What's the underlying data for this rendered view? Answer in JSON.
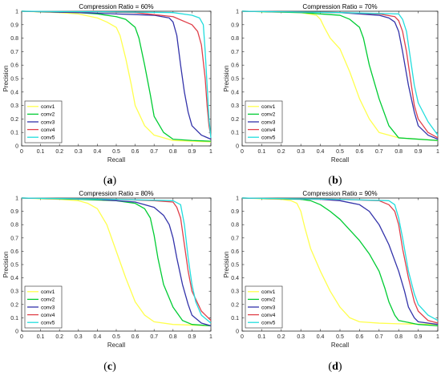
{
  "chart_data": [
    {
      "type": "line",
      "title": "Compression Ratio = 60%",
      "xlabel": "Recall",
      "ylabel": "Precision",
      "xlim": [
        0,
        1
      ],
      "ylim": [
        0,
        1
      ],
      "xticks": [
        "0",
        "0.1",
        "0.2",
        "0.3",
        "0.4",
        "0.5",
        "0.6",
        "0.7",
        "0.8",
        "0.9",
        "1"
      ],
      "yticks": [
        "0",
        "0.1",
        "0.2",
        "0.3",
        "0.4",
        "0.5",
        "0.6",
        "0.7",
        "0.8",
        "0.9",
        "1"
      ],
      "grid": false,
      "legend_position": "bottom-left",
      "panel_label": "a",
      "series": [
        {
          "name": "conv1",
          "color": "#ffff4d",
          "x": [
            0,
            0.2,
            0.3,
            0.4,
            0.45,
            0.5,
            0.52,
            0.55,
            0.58,
            0.6,
            0.65,
            0.7,
            0.8,
            0.9,
            1.0
          ],
          "y": [
            1.0,
            0.99,
            0.98,
            0.95,
            0.92,
            0.88,
            0.82,
            0.65,
            0.45,
            0.3,
            0.15,
            0.08,
            0.04,
            0.035,
            0.03
          ]
        },
        {
          "name": "conv2",
          "color": "#00cc33",
          "x": [
            0,
            0.3,
            0.4,
            0.5,
            0.55,
            0.6,
            0.62,
            0.65,
            0.68,
            0.7,
            0.75,
            0.8,
            0.9,
            1.0
          ],
          "y": [
            1.0,
            0.99,
            0.98,
            0.96,
            0.94,
            0.88,
            0.8,
            0.6,
            0.38,
            0.22,
            0.1,
            0.05,
            0.04,
            0.035
          ]
        },
        {
          "name": "conv3",
          "color": "#3333aa",
          "x": [
            0,
            0.3,
            0.5,
            0.7,
            0.78,
            0.8,
            0.82,
            0.84,
            0.86,
            0.88,
            0.9,
            0.95,
            1.0
          ],
          "y": [
            1.0,
            0.99,
            0.98,
            0.97,
            0.95,
            0.92,
            0.82,
            0.6,
            0.4,
            0.25,
            0.15,
            0.08,
            0.05
          ]
        },
        {
          "name": "conv4",
          "color": "#e0404a",
          "x": [
            0,
            0.4,
            0.6,
            0.8,
            0.9,
            0.93,
            0.95,
            0.97,
            0.98,
            0.99,
            1.0
          ],
          "y": [
            1.0,
            0.995,
            0.99,
            0.96,
            0.9,
            0.85,
            0.75,
            0.5,
            0.3,
            0.15,
            0.07
          ]
        },
        {
          "name": "conv5",
          "color": "#22dddd",
          "x": [
            0,
            0.5,
            0.8,
            0.9,
            0.94,
            0.96,
            0.97,
            0.98,
            0.99,
            1.0
          ],
          "y": [
            1.0,
            0.995,
            0.99,
            0.97,
            0.95,
            0.9,
            0.7,
            0.45,
            0.2,
            0.06
          ]
        }
      ]
    },
    {
      "type": "line",
      "title": "Compression Ratio = 70%",
      "xlabel": "Recall",
      "ylabel": "Precision",
      "xlim": [
        0,
        1
      ],
      "ylim": [
        0,
        1
      ],
      "xticks": [
        "0",
        "0.1",
        "0.2",
        "0.3",
        "0.4",
        "0.5",
        "0.6",
        "0.7",
        "0.8",
        "0.9",
        "1"
      ],
      "yticks": [
        "0",
        "0.1",
        "0.2",
        "0.3",
        "0.4",
        "0.5",
        "0.6",
        "0.7",
        "0.8",
        "0.9",
        "1"
      ],
      "grid": false,
      "legend_position": "bottom-left",
      "panel_label": "b",
      "series": [
        {
          "name": "conv1",
          "color": "#ffff4d",
          "x": [
            0,
            0.3,
            0.38,
            0.4,
            0.42,
            0.45,
            0.5,
            0.55,
            0.6,
            0.65,
            0.7,
            0.8,
            1.0
          ],
          "y": [
            1.0,
            0.99,
            0.97,
            0.94,
            0.88,
            0.8,
            0.72,
            0.55,
            0.35,
            0.2,
            0.1,
            0.06,
            0.04
          ]
        },
        {
          "name": "conv2",
          "color": "#00cc33",
          "x": [
            0,
            0.3,
            0.5,
            0.55,
            0.6,
            0.62,
            0.65,
            0.7,
            0.75,
            0.8,
            1.0
          ],
          "y": [
            1.0,
            0.99,
            0.97,
            0.94,
            0.88,
            0.8,
            0.6,
            0.35,
            0.15,
            0.06,
            0.04
          ]
        },
        {
          "name": "conv3",
          "color": "#3333aa",
          "x": [
            0,
            0.5,
            0.7,
            0.75,
            0.78,
            0.8,
            0.82,
            0.85,
            0.88,
            0.9,
            0.95,
            1.0
          ],
          "y": [
            1.0,
            0.99,
            0.97,
            0.95,
            0.92,
            0.85,
            0.7,
            0.45,
            0.25,
            0.15,
            0.08,
            0.05
          ]
        },
        {
          "name": "conv4",
          "color": "#e0404a",
          "x": [
            0,
            0.5,
            0.7,
            0.78,
            0.8,
            0.82,
            0.84,
            0.86,
            0.88,
            0.9,
            0.95,
            1.0
          ],
          "y": [
            1.0,
            0.99,
            0.98,
            0.96,
            0.93,
            0.85,
            0.7,
            0.5,
            0.3,
            0.2,
            0.1,
            0.06
          ]
        },
        {
          "name": "conv5",
          "color": "#22dddd",
          "x": [
            0,
            0.5,
            0.8,
            0.82,
            0.84,
            0.86,
            0.88,
            0.9,
            0.95,
            1.0
          ],
          "y": [
            1.0,
            0.99,
            0.98,
            0.94,
            0.85,
            0.65,
            0.45,
            0.32,
            0.18,
            0.08
          ]
        }
      ]
    },
    {
      "type": "line",
      "title": "Compression Ratio = 80%",
      "xlabel": "Recall",
      "ylabel": "Precision",
      "xlim": [
        0,
        1
      ],
      "ylim": [
        0,
        1
      ],
      "xticks": [
        "0",
        "0.1",
        "0.2",
        "0.3",
        "0.4",
        "0.5",
        "0.6",
        "0.7",
        "0.8",
        "0.9",
        "1"
      ],
      "yticks": [
        "0",
        "0.1",
        "0.2",
        "0.3",
        "0.4",
        "0.5",
        "0.6",
        "0.7",
        "0.8",
        "0.9",
        "1"
      ],
      "grid": false,
      "legend_position": "bottom-left",
      "panel_label": "c",
      "series": [
        {
          "name": "conv1",
          "color": "#ffff4d",
          "x": [
            0,
            0.2,
            0.3,
            0.35,
            0.4,
            0.45,
            0.5,
            0.55,
            0.6,
            0.65,
            0.7,
            0.8,
            1.0
          ],
          "y": [
            1.0,
            0.99,
            0.98,
            0.96,
            0.92,
            0.8,
            0.6,
            0.4,
            0.22,
            0.12,
            0.07,
            0.05,
            0.04
          ]
        },
        {
          "name": "conv2",
          "color": "#00cc33",
          "x": [
            0,
            0.3,
            0.5,
            0.6,
            0.65,
            0.68,
            0.7,
            0.72,
            0.75,
            0.8,
            0.85,
            0.9,
            1.0
          ],
          "y": [
            1.0,
            0.99,
            0.98,
            0.96,
            0.92,
            0.85,
            0.72,
            0.55,
            0.35,
            0.18,
            0.08,
            0.05,
            0.04
          ]
        },
        {
          "name": "conv3",
          "color": "#3333aa",
          "x": [
            0,
            0.4,
            0.6,
            0.7,
            0.75,
            0.78,
            0.8,
            0.82,
            0.85,
            0.88,
            0.9,
            0.95,
            1.0
          ],
          "y": [
            1.0,
            0.99,
            0.97,
            0.93,
            0.87,
            0.8,
            0.7,
            0.55,
            0.35,
            0.2,
            0.12,
            0.06,
            0.04
          ]
        },
        {
          "name": "conv4",
          "color": "#e0404a",
          "x": [
            0,
            0.5,
            0.7,
            0.8,
            0.82,
            0.84,
            0.86,
            0.88,
            0.9,
            0.95,
            1.0
          ],
          "y": [
            1.0,
            0.99,
            0.98,
            0.97,
            0.93,
            0.85,
            0.65,
            0.45,
            0.3,
            0.15,
            0.08
          ]
        },
        {
          "name": "conv5",
          "color": "#22dddd",
          "x": [
            0,
            0.5,
            0.8,
            0.84,
            0.86,
            0.88,
            0.9,
            0.92,
            0.95,
            1.0
          ],
          "y": [
            1.0,
            0.99,
            0.98,
            0.95,
            0.8,
            0.55,
            0.35,
            0.22,
            0.12,
            0.06
          ]
        }
      ]
    },
    {
      "type": "line",
      "title": "Compression Ratio = 90%",
      "xlabel": "Recall",
      "ylabel": "Precision",
      "xlim": [
        0,
        1
      ],
      "ylim": [
        0,
        1
      ],
      "xticks": [
        "0",
        "0.1",
        "0.2",
        "0.3",
        "0.4",
        "0.5",
        "0.6",
        "0.7",
        "0.8",
        "0.9",
        "1"
      ],
      "yticks": [
        "0",
        "0.1",
        "0.2",
        "0.3",
        "0.4",
        "0.5",
        "0.6",
        "0.7",
        "0.8",
        "0.9",
        "1"
      ],
      "grid": false,
      "legend_position": "bottom-left",
      "panel_label": "d",
      "series": [
        {
          "name": "conv1",
          "color": "#ffff4d",
          "x": [
            0,
            0.2,
            0.25,
            0.28,
            0.3,
            0.32,
            0.35,
            0.4,
            0.45,
            0.5,
            0.55,
            0.6,
            0.7,
            0.8,
            1.0
          ],
          "y": [
            1.0,
            0.99,
            0.98,
            0.96,
            0.9,
            0.78,
            0.62,
            0.45,
            0.3,
            0.18,
            0.1,
            0.07,
            0.06,
            0.055,
            0.05
          ]
        },
        {
          "name": "conv2",
          "color": "#00cc33",
          "x": [
            0,
            0.3,
            0.35,
            0.4,
            0.45,
            0.5,
            0.55,
            0.6,
            0.65,
            0.7,
            0.73,
            0.75,
            0.78,
            0.8,
            0.9,
            1.0
          ],
          "y": [
            1.0,
            0.99,
            0.98,
            0.95,
            0.9,
            0.84,
            0.76,
            0.68,
            0.58,
            0.45,
            0.32,
            0.22,
            0.12,
            0.08,
            0.05,
            0.04
          ]
        },
        {
          "name": "conv3",
          "color": "#3333aa",
          "x": [
            0,
            0.4,
            0.5,
            0.6,
            0.65,
            0.7,
            0.75,
            0.8,
            0.83,
            0.85,
            0.88,
            0.9,
            1.0
          ],
          "y": [
            1.0,
            0.99,
            0.98,
            0.95,
            0.9,
            0.8,
            0.65,
            0.45,
            0.3,
            0.18,
            0.1,
            0.07,
            0.05
          ]
        },
        {
          "name": "conv4",
          "color": "#e0404a",
          "x": [
            0,
            0.5,
            0.7,
            0.75,
            0.78,
            0.8,
            0.82,
            0.85,
            0.88,
            0.9,
            0.95,
            1.0
          ],
          "y": [
            1.0,
            0.99,
            0.98,
            0.95,
            0.9,
            0.8,
            0.62,
            0.4,
            0.22,
            0.15,
            0.08,
            0.06
          ]
        },
        {
          "name": "conv5",
          "color": "#22dddd",
          "x": [
            0,
            0.5,
            0.75,
            0.78,
            0.8,
            0.82,
            0.85,
            0.88,
            0.9,
            0.95,
            1.0
          ],
          "y": [
            1.0,
            0.99,
            0.98,
            0.95,
            0.85,
            0.7,
            0.45,
            0.28,
            0.2,
            0.12,
            0.08
          ]
        }
      ]
    }
  ]
}
